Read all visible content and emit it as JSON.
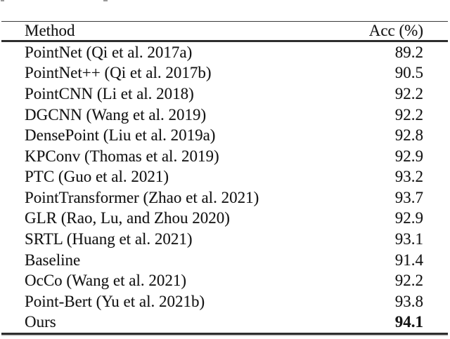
{
  "colors": {
    "background": "#ffffff",
    "text": "#141414",
    "rule": "#2e2e2e"
  },
  "table": {
    "header": {
      "method": "Method",
      "acc": "Acc (%)"
    },
    "rows": [
      {
        "method": "PointNet (Qi et al. 2017a)",
        "acc": "89.2",
        "bold": false
      },
      {
        "method": "PointNet++ (Qi et al. 2017b)",
        "acc": "90.5",
        "bold": false
      },
      {
        "method": "PointCNN (Li et al. 2018)",
        "acc": "92.2",
        "bold": false
      },
      {
        "method": "DGCNN (Wang et al. 2019)",
        "acc": "92.2",
        "bold": false
      },
      {
        "method": "DensePoint (Liu et al. 2019a)",
        "acc": "92.8",
        "bold": false
      },
      {
        "method": "KPConv (Thomas et al. 2019)",
        "acc": "92.9",
        "bold": false
      },
      {
        "method": "PTC (Guo et al. 2021)",
        "acc": "93.2",
        "bold": false
      },
      {
        "method": "PointTransformer (Zhao et al. 2021)",
        "acc": "93.7",
        "bold": false
      },
      {
        "method": "GLR (Rao, Lu, and Zhou 2020)",
        "acc": "92.9",
        "bold": false
      },
      {
        "method": "SRTL (Huang et al. 2021)",
        "acc": "93.1",
        "bold": false
      },
      {
        "method": "Baseline",
        "acc": "91.4",
        "bold": false
      },
      {
        "method": "OcCo (Wang et al. 2021)",
        "acc": "92.2",
        "bold": false
      },
      {
        "method": "Point-Bert (Yu et al. 2021b)",
        "acc": "93.8",
        "bold": false
      },
      {
        "method": "Ours",
        "acc": "94.1",
        "bold": true
      }
    ]
  }
}
